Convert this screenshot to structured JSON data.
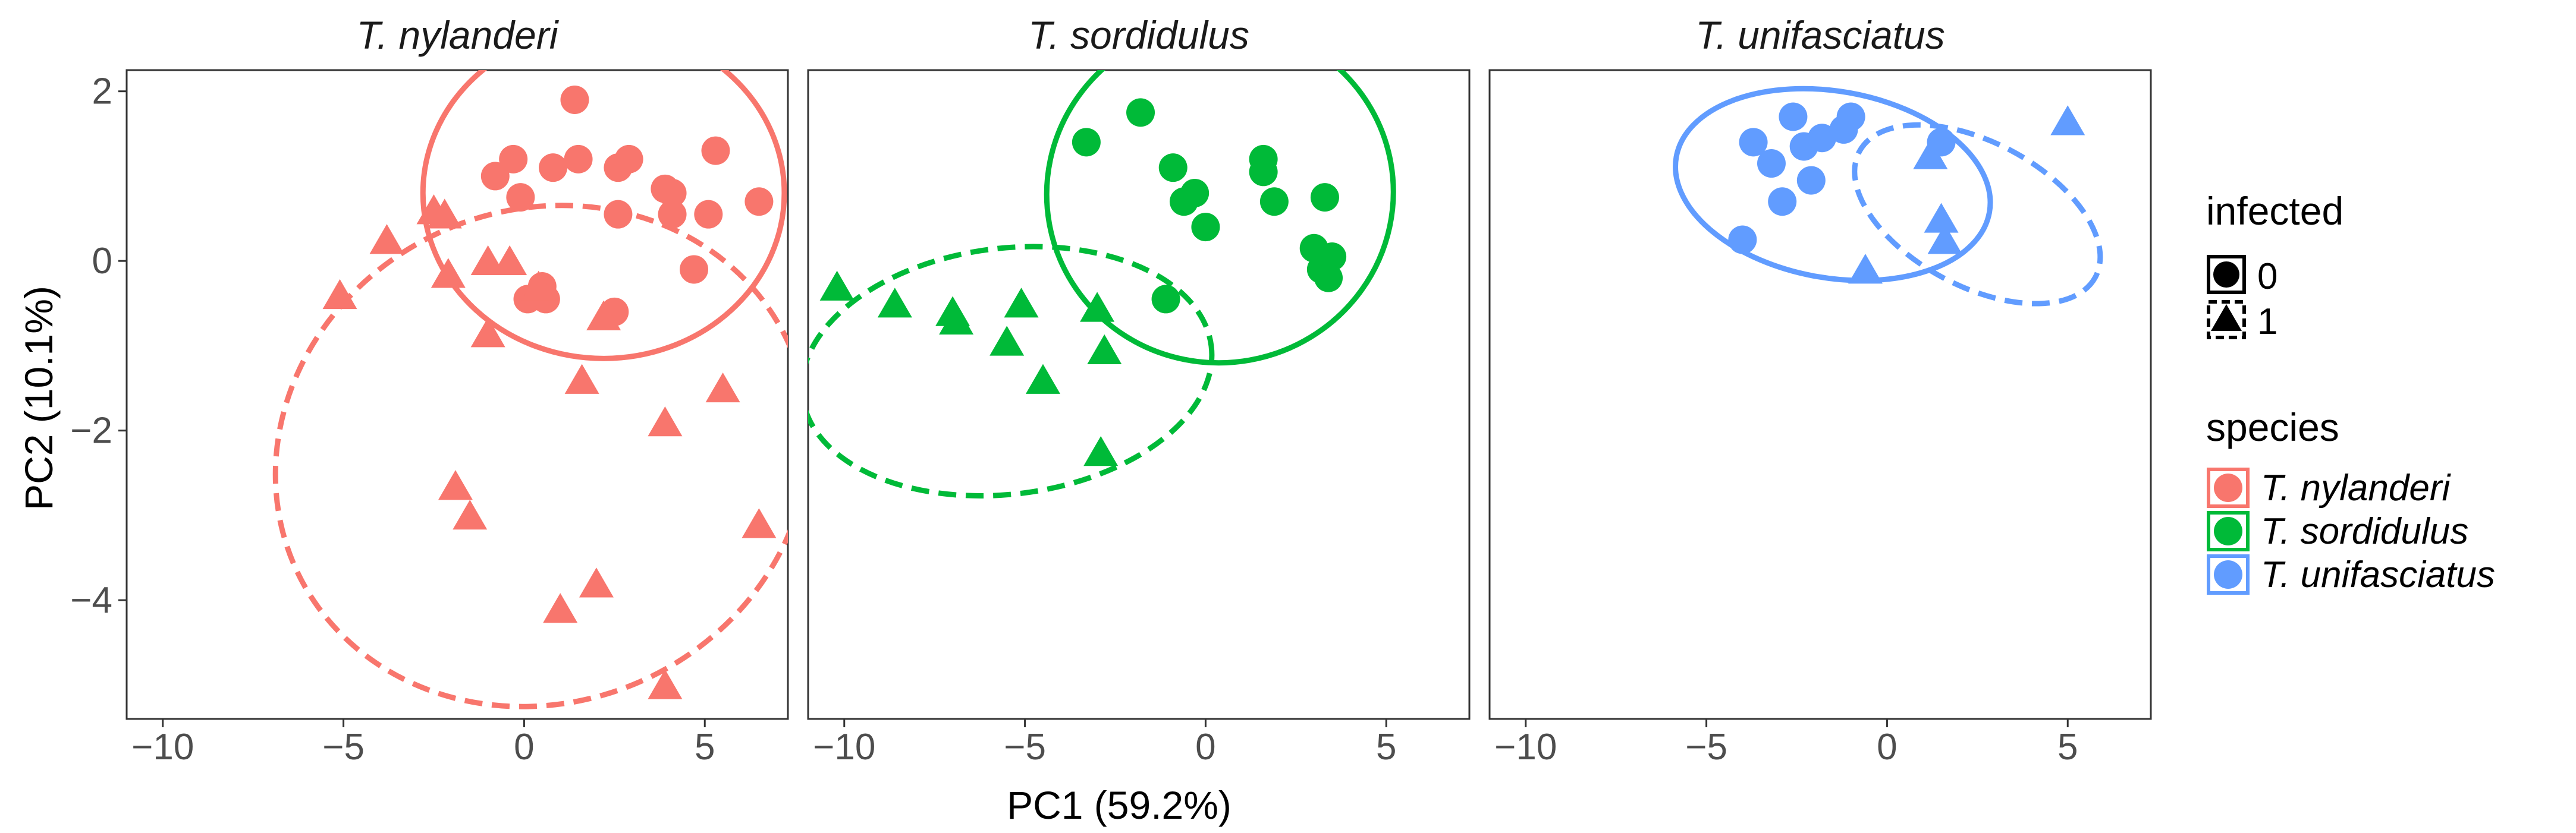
{
  "chart_data": {
    "type": "scatter",
    "facets": [
      "T. nylanderi",
      "T. sordidulus",
      "T. unifasciatus"
    ],
    "xlabel": "PC1 (59.2%)",
    "ylabel": "PC2 (10.1%)",
    "xlim": [
      -11,
      7.3
    ],
    "ylim": [
      -5.4,
      2.25
    ],
    "xticks": [
      -10,
      -5,
      0,
      5
    ],
    "xtick_labels": [
      "−10",
      "−5",
      "0",
      "5"
    ],
    "yticks": [
      2,
      0,
      -2,
      -4
    ],
    "ytick_labels": [
      "2",
      "0",
      "−2",
      "−4"
    ],
    "grid": false,
    "colors": {
      "T. nylanderi": "#F8766D",
      "T. sordidulus": "#00BA38",
      "T. unifasciatus": "#619CFF"
    },
    "legend": {
      "placement": "right",
      "infected": {
        "title": "infected",
        "items": [
          "0",
          "1"
        ]
      },
      "species": {
        "title": "species",
        "items": [
          "T. nylanderi",
          "T. sordidulus",
          "T. unifasciatus"
        ]
      }
    },
    "ellipses": [
      {
        "species": "T. nylanderi",
        "infected": "0",
        "cx": 2.2,
        "cy": 0.8,
        "rx": 5.0,
        "ry": 1.95,
        "angle": 0
      },
      {
        "species": "T. nylanderi",
        "infected": "1",
        "cx": 0.5,
        "cy": -2.3,
        "rx": 7.5,
        "ry": 2.9,
        "angle": -25
      },
      {
        "species": "T. sordidulus",
        "infected": "0",
        "cx": 0.4,
        "cy": 0.8,
        "rx": 4.8,
        "ry": 2.0,
        "angle": -10
      },
      {
        "species": "T. sordidulus",
        "infected": "1",
        "cx": -5.5,
        "cy": -1.3,
        "rx": 5.7,
        "ry": 1.45,
        "angle": -7
      },
      {
        "species": "T. unifasciatus",
        "infected": "0",
        "cx": -1.5,
        "cy": 0.9,
        "rx": 4.4,
        "ry": 1.1,
        "angle": 10
      },
      {
        "species": "T. unifasciatus",
        "infected": "1",
        "cx": 2.5,
        "cy": 0.55,
        "rx": 3.7,
        "ry": 0.85,
        "angle": 28
      }
    ],
    "points": [
      {
        "species": "T. nylanderi",
        "infected": "0",
        "x": 1.4,
        "y": 1.9
      },
      {
        "species": "T. nylanderi",
        "infected": "0",
        "x": -0.3,
        "y": 1.2
      },
      {
        "species": "T. nylanderi",
        "infected": "0",
        "x": 0.8,
        "y": 1.1
      },
      {
        "species": "T. nylanderi",
        "infected": "0",
        "x": 1.5,
        "y": 1.2
      },
      {
        "species": "T. nylanderi",
        "infected": "0",
        "x": 2.6,
        "y": 1.1
      },
      {
        "species": "T. nylanderi",
        "infected": "0",
        "x": 2.9,
        "y": 1.2
      },
      {
        "species": "T. nylanderi",
        "infected": "0",
        "x": 5.3,
        "y": 1.3
      },
      {
        "species": "T. nylanderi",
        "infected": "0",
        "x": -0.8,
        "y": 1.0
      },
      {
        "species": "T. nylanderi",
        "infected": "0",
        "x": 3.9,
        "y": 0.85
      },
      {
        "species": "T. nylanderi",
        "infected": "0",
        "x": 4.1,
        "y": 0.8
      },
      {
        "species": "T. nylanderi",
        "infected": "0",
        "x": -0.1,
        "y": 0.75
      },
      {
        "species": "T. nylanderi",
        "infected": "0",
        "x": 2.6,
        "y": 0.55
      },
      {
        "species": "T. nylanderi",
        "infected": "0",
        "x": 4.1,
        "y": 0.55
      },
      {
        "species": "T. nylanderi",
        "infected": "0",
        "x": 5.1,
        "y": 0.55
      },
      {
        "species": "T. nylanderi",
        "infected": "0",
        "x": 6.5,
        "y": 0.7
      },
      {
        "species": "T. nylanderi",
        "infected": "0",
        "x": 4.7,
        "y": -0.1
      },
      {
        "species": "T. nylanderi",
        "infected": "0",
        "x": 0.5,
        "y": -0.3
      },
      {
        "species": "T. nylanderi",
        "infected": "0",
        "x": 0.1,
        "y": -0.45
      },
      {
        "species": "T. nylanderi",
        "infected": "0",
        "x": 0.6,
        "y": -0.45
      },
      {
        "species": "T. nylanderi",
        "infected": "0",
        "x": 2.5,
        "y": -0.6
      },
      {
        "species": "T. nylanderi",
        "infected": "1",
        "x": -2.5,
        "y": 0.55
      },
      {
        "species": "T. nylanderi",
        "infected": "1",
        "x": -2.2,
        "y": 0.5
      },
      {
        "species": "T. nylanderi",
        "infected": "1",
        "x": -3.8,
        "y": 0.2
      },
      {
        "species": "T. nylanderi",
        "infected": "1",
        "x": -1.0,
        "y": -0.05
      },
      {
        "species": "T. nylanderi",
        "infected": "1",
        "x": -0.4,
        "y": -0.05
      },
      {
        "species": "T. nylanderi",
        "infected": "1",
        "x": -2.1,
        "y": -0.2
      },
      {
        "species": "T. nylanderi",
        "infected": "1",
        "x": 0.4,
        "y": -0.35
      },
      {
        "species": "T. nylanderi",
        "infected": "1",
        "x": -5.1,
        "y": -0.45
      },
      {
        "species": "T. nylanderi",
        "infected": "1",
        "x": 2.2,
        "y": -0.7
      },
      {
        "species": "T. nylanderi",
        "infected": "1",
        "x": -1.0,
        "y": -0.9
      },
      {
        "species": "T. nylanderi",
        "infected": "1",
        "x": 1.6,
        "y": -1.45
      },
      {
        "species": "T. nylanderi",
        "infected": "1",
        "x": 5.5,
        "y": -1.55
      },
      {
        "species": "T. nylanderi",
        "infected": "1",
        "x": 3.9,
        "y": -1.95
      },
      {
        "species": "T. nylanderi",
        "infected": "1",
        "x": -1.9,
        "y": -2.7
      },
      {
        "species": "T. nylanderi",
        "infected": "1",
        "x": -1.5,
        "y": -3.05
      },
      {
        "species": "T. nylanderi",
        "infected": "1",
        "x": 6.5,
        "y": -3.15
      },
      {
        "species": "T. nylanderi",
        "infected": "1",
        "x": 2.0,
        "y": -3.85
      },
      {
        "species": "T. nylanderi",
        "infected": "1",
        "x": 1.0,
        "y": -4.15
      },
      {
        "species": "T. nylanderi",
        "infected": "1",
        "x": 3.9,
        "y": -5.05
      },
      {
        "species": "T. sordidulus",
        "infected": "0",
        "x": -1.8,
        "y": 1.75
      },
      {
        "species": "T. sordidulus",
        "infected": "0",
        "x": -3.3,
        "y": 1.4
      },
      {
        "species": "T. sordidulus",
        "infected": "0",
        "x": 1.6,
        "y": 1.2
      },
      {
        "species": "T. sordidulus",
        "infected": "0",
        "x": 1.6,
        "y": 1.05
      },
      {
        "species": "T. sordidulus",
        "infected": "0",
        "x": -0.9,
        "y": 1.1
      },
      {
        "species": "T. sordidulus",
        "infected": "0",
        "x": -0.3,
        "y": 0.8
      },
      {
        "species": "T. sordidulus",
        "infected": "0",
        "x": -0.6,
        "y": 0.7
      },
      {
        "species": "T. sordidulus",
        "infected": "0",
        "x": 1.9,
        "y": 0.7
      },
      {
        "species": "T. sordidulus",
        "infected": "0",
        "x": 3.3,
        "y": 0.75
      },
      {
        "species": "T. sordidulus",
        "infected": "0",
        "x": 0.0,
        "y": 0.4
      },
      {
        "species": "T. sordidulus",
        "infected": "0",
        "x": 3.0,
        "y": 0.15
      },
      {
        "species": "T. sordidulus",
        "infected": "0",
        "x": 3.5,
        "y": 0.05
      },
      {
        "species": "T. sordidulus",
        "infected": "0",
        "x": 3.2,
        "y": -0.1
      },
      {
        "species": "T. sordidulus",
        "infected": "0",
        "x": 3.4,
        "y": -0.2
      },
      {
        "species": "T. sordidulus",
        "infected": "0",
        "x": -1.1,
        "y": -0.45
      },
      {
        "species": "T. sordidulus",
        "infected": "1",
        "x": -10.2,
        "y": -0.35
      },
      {
        "species": "T. sordidulus",
        "infected": "1",
        "x": -8.6,
        "y": -0.55
      },
      {
        "species": "T. sordidulus",
        "infected": "1",
        "x": -5.1,
        "y": -0.55
      },
      {
        "species": "T. sordidulus",
        "infected": "1",
        "x": -7.0,
        "y": -0.65
      },
      {
        "species": "T. sordidulus",
        "infected": "1",
        "x": -6.9,
        "y": -0.75
      },
      {
        "species": "T. sordidulus",
        "infected": "1",
        "x": -3.0,
        "y": -0.6
      },
      {
        "species": "T. sordidulus",
        "infected": "1",
        "x": -5.5,
        "y": -1.0
      },
      {
        "species": "T. sordidulus",
        "infected": "1",
        "x": -2.8,
        "y": -1.1
      },
      {
        "species": "T. sordidulus",
        "infected": "1",
        "x": -4.5,
        "y": -1.45
      },
      {
        "species": "T. sordidulus",
        "infected": "1",
        "x": -2.9,
        "y": -2.3
      },
      {
        "species": "T. unifasciatus",
        "infected": "0",
        "x": -2.6,
        "y": 1.7
      },
      {
        "species": "T. unifasciatus",
        "infected": "0",
        "x": -1.0,
        "y": 1.7
      },
      {
        "species": "T. unifasciatus",
        "infected": "0",
        "x": -3.7,
        "y": 1.4
      },
      {
        "species": "T. unifasciatus",
        "infected": "0",
        "x": -2.3,
        "y": 1.35
      },
      {
        "species": "T. unifasciatus",
        "infected": "0",
        "x": -1.8,
        "y": 1.45
      },
      {
        "species": "T. unifasciatus",
        "infected": "0",
        "x": -1.2,
        "y": 1.55
      },
      {
        "species": "T. unifasciatus",
        "infected": "0",
        "x": -3.2,
        "y": 1.15
      },
      {
        "species": "T. unifasciatus",
        "infected": "0",
        "x": -2.1,
        "y": 0.95
      },
      {
        "species": "T. unifasciatus",
        "infected": "0",
        "x": -2.9,
        "y": 0.7
      },
      {
        "species": "T. unifasciatus",
        "infected": "0",
        "x": -4.0,
        "y": 0.25
      },
      {
        "species": "T. unifasciatus",
        "infected": "0",
        "x": 1.5,
        "y": 1.4
      },
      {
        "species": "T. unifasciatus",
        "infected": "1",
        "x": 5.0,
        "y": 1.6
      },
      {
        "species": "T. unifasciatus",
        "infected": "1",
        "x": 1.2,
        "y": 1.2
      },
      {
        "species": "T. unifasciatus",
        "infected": "1",
        "x": 1.5,
        "y": 0.45
      },
      {
        "species": "T. unifasciatus",
        "infected": "1",
        "x": 1.6,
        "y": 0.2
      },
      {
        "species": "T. unifasciatus",
        "infected": "1",
        "x": -0.6,
        "y": -0.15
      }
    ]
  }
}
